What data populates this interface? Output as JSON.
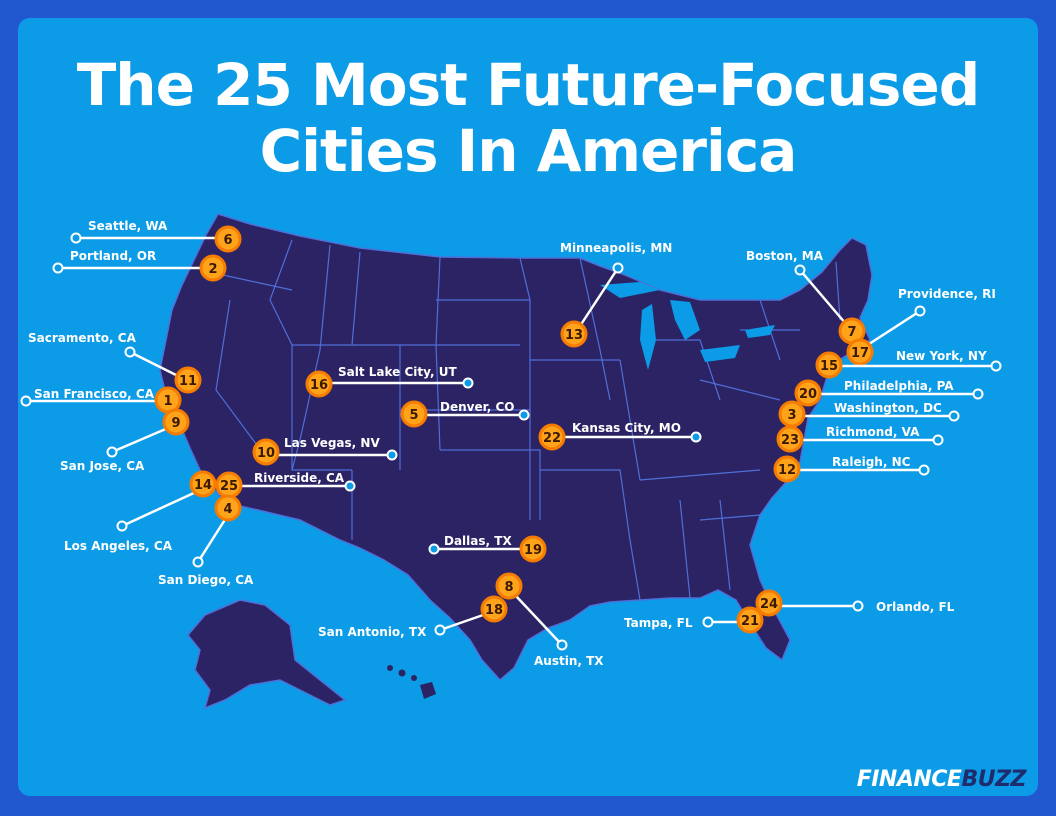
{
  "title": "The 25 Most Future-Focused Cities In America",
  "logo": {
    "part1": "FINANCE",
    "part2": "BUZZ"
  },
  "colors": {
    "background": "#0c9be6",
    "land": "#2b2363",
    "marker": "#f57c00",
    "marker_fill": "#ffa31a",
    "leader": "#ffffff"
  },
  "cities": [
    {
      "rank": "1",
      "name": "San Francisco, CA"
    },
    {
      "rank": "2",
      "name": "Portland, OR"
    },
    {
      "rank": "3",
      "name": "Washington, DC"
    },
    {
      "rank": "4",
      "name": "San Diego, CA"
    },
    {
      "rank": "5",
      "name": "Denver, CO"
    },
    {
      "rank": "6",
      "name": "Seattle, WA"
    },
    {
      "rank": "7",
      "name": "Boston, MA"
    },
    {
      "rank": "8",
      "name": "Austin, TX"
    },
    {
      "rank": "9",
      "name": "San Jose, CA"
    },
    {
      "rank": "10",
      "name": "Las Vegas, NV"
    },
    {
      "rank": "11",
      "name": "Sacramento, CA"
    },
    {
      "rank": "12",
      "name": "Raleigh, NC"
    },
    {
      "rank": "13",
      "name": "Minneapolis, MN"
    },
    {
      "rank": "14",
      "name": "Los Angeles, CA"
    },
    {
      "rank": "15",
      "name": "New York, NY"
    },
    {
      "rank": "16",
      "name": "Salt Lake City, UT"
    },
    {
      "rank": "17",
      "name": "Providence, RI"
    },
    {
      "rank": "18",
      "name": "San Antonio, TX"
    },
    {
      "rank": "19",
      "name": "Dallas, TX"
    },
    {
      "rank": "20",
      "name": "Philadelphia, PA"
    },
    {
      "rank": "21",
      "name": "Tampa, FL"
    },
    {
      "rank": "22",
      "name": "Kansas City, MO"
    },
    {
      "rank": "23",
      "name": "Richmond, VA"
    },
    {
      "rank": "24",
      "name": "Orlando, FL"
    },
    {
      "rank": "25",
      "name": "Riverside, CA"
    }
  ]
}
